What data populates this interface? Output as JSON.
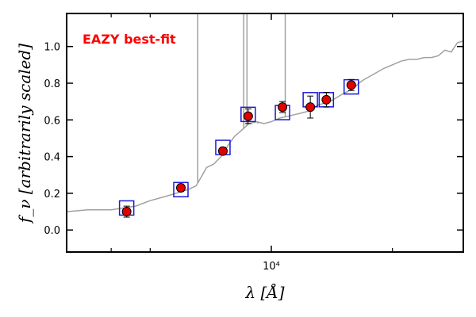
{
  "chart_data": {
    "type": "scatter",
    "title": "",
    "annotation": "EAZY best-fit",
    "xlabel": "λ [Å]",
    "ylabel": "f_ν [arbitrarily scaled]",
    "xscale": "log",
    "xlim": [
      3100,
      30000
    ],
    "ylim": [
      -0.12,
      1.18
    ],
    "x_tick_labels": [
      {
        "value": 10000,
        "label": "10⁴"
      }
    ],
    "x_minor_ticks": [
      4000,
      5000,
      20000
    ],
    "y_ticks": [
      0.0,
      0.2,
      0.4,
      0.6,
      0.8,
      1.0
    ],
    "y_tick_labels": [
      "0.0",
      "0.2",
      "0.4",
      "0.6",
      "0.8",
      "1.0"
    ],
    "grid": false,
    "colors": {
      "observed_face": "#e00000",
      "model_box": "#1a1adb",
      "sed": "#a0a0a0",
      "annotation": "#ff0000"
    },
    "series": [
      {
        "role": "observed",
        "x": [
          4370,
          5960,
          7580,
          8760,
          10660,
          12500,
          13700,
          15800
        ],
        "y": [
          0.1,
          0.23,
          0.43,
          0.62,
          0.67,
          0.67,
          0.71,
          0.79
        ],
        "yerr": [
          0.03,
          0.02,
          0.02,
          0.04,
          0.03,
          0.06,
          0.04,
          0.03
        ]
      },
      {
        "role": "model",
        "x": [
          4370,
          5960,
          7580,
          8760,
          10660,
          12500,
          13700,
          15800
        ],
        "y": [
          0.12,
          0.22,
          0.45,
          0.63,
          0.64,
          0.71,
          0.71,
          0.78
        ]
      },
      {
        "role": "sed",
        "x": [
          3100,
          3500,
          4000,
          4300,
          4600,
          5000,
          5400,
          5800,
          6200,
          6500,
          6700,
          6900,
          7200,
          7500,
          7800,
          8100,
          8500,
          8800,
          9200,
          9600,
          10000,
          10500,
          11000,
          11500,
          12000,
          12500,
          13000,
          14000,
          15000,
          16000,
          16500,
          17000,
          18000,
          19000,
          20000,
          21000,
          22000,
          23000,
          24000,
          25000,
          26000,
          27000,
          28000,
          29000,
          30000
        ],
        "y": [
          0.1,
          0.11,
          0.11,
          0.12,
          0.13,
          0.16,
          0.18,
          0.2,
          0.22,
          0.24,
          0.29,
          0.34,
          0.36,
          0.4,
          0.46,
          0.51,
          0.55,
          0.58,
          0.59,
          0.58,
          0.59,
          0.61,
          0.62,
          0.63,
          0.64,
          0.65,
          0.68,
          0.7,
          0.74,
          0.77,
          0.8,
          0.82,
          0.85,
          0.88,
          0.9,
          0.92,
          0.93,
          0.93,
          0.94,
          0.94,
          0.95,
          0.98,
          0.97,
          1.02,
          1.03
        ]
      },
      {
        "role": "emission-lines",
        "x": [
          6563,
          8540,
          8700,
          9250,
          10830
        ],
        "y_top": [
          1.18,
          1.18,
          1.18,
          0.58,
          1.18
        ]
      }
    ]
  }
}
